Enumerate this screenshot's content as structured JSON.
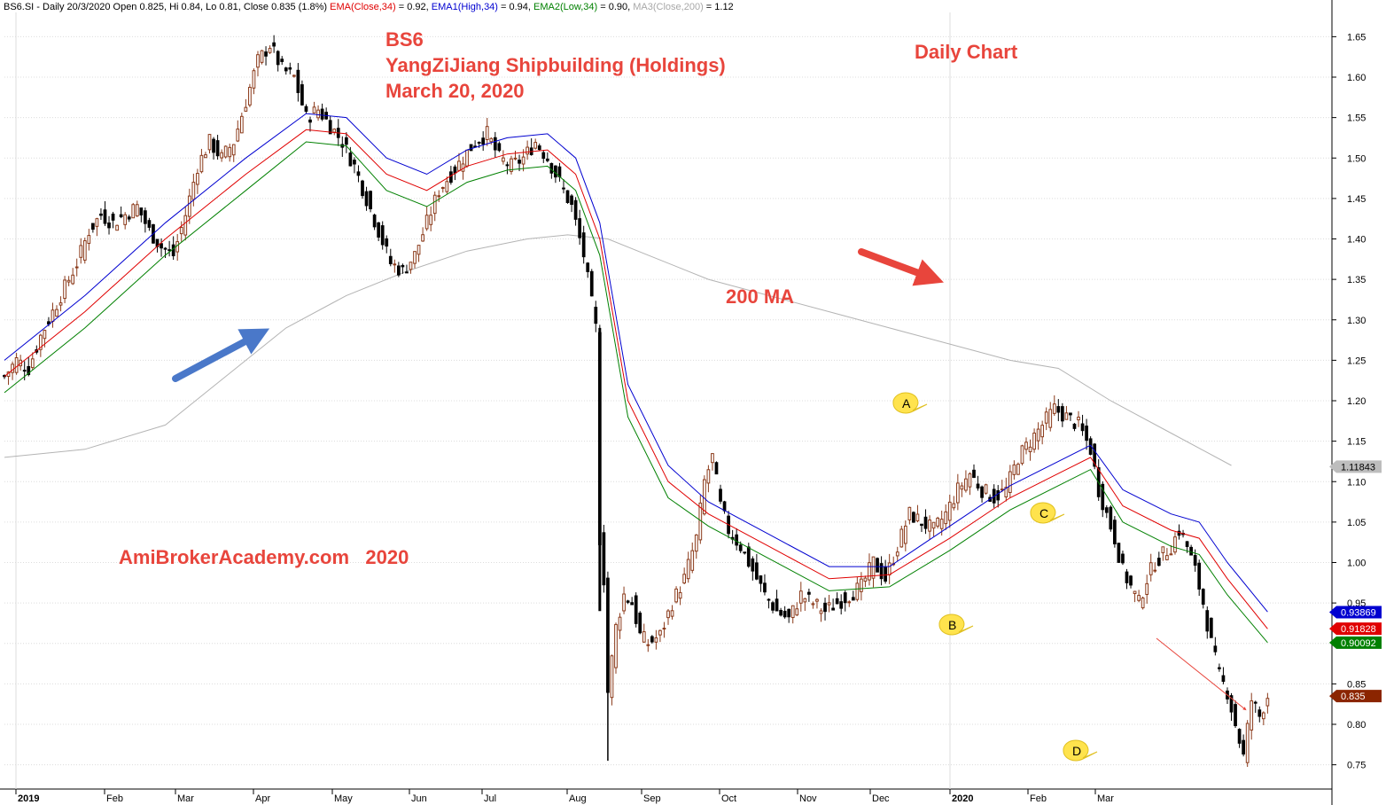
{
  "header": {
    "symbol_info": "BS6.SI - Daily 20/3/2020 Open 0.825, Hi 0.84, Lo 0.81, Close 0.835 (1.8%)",
    "ema_close_label": "EMA(Close,34)",
    "ema_close_value": " = 0.92, ",
    "ema_high_label": "EMA1(High,34)",
    "ema_high_value": " = 0.94, ",
    "ema_low_label": "EMA2(Low,34)",
    "ema_low_value": " = 0.90, ",
    "ma_label": "MA3(Close,200)",
    "ma_value": " = 1.12"
  },
  "annotations": {
    "ticker": "BS6",
    "company": "YangZiJiang Shipbuilding (Holdings)",
    "date": "March 20, 2020",
    "daily_chart": "Daily Chart",
    "ma200": "200 MA",
    "watermark": "AmiBrokerAcademy.com   2020"
  },
  "colors": {
    "ema_close": "#e00000",
    "ema_high": "#0000d0",
    "ema_low": "#008000",
    "ma200": "#b4b4b4",
    "candle_up": "#8b3a1a",
    "candle_down": "#000000",
    "grid": "#dcdcdc",
    "annotation": "#e8453c",
    "blue_arrow": "#4a78c9",
    "red_arrow": "#e8453c",
    "pin": "#ffe34d"
  },
  "chart_data": {
    "type": "candlestick",
    "y_axis": {
      "min": 0.72,
      "max": 1.68,
      "ticks": [
        "1.65",
        "1.60",
        "1.55",
        "1.50",
        "1.45",
        "1.40",
        "1.35",
        "1.30",
        "1.25",
        "1.20",
        "1.15",
        "1.10",
        "1.05",
        "1.00",
        "0.95",
        "0.90",
        "0.85",
        "0.80",
        "0.75"
      ]
    },
    "x_axis": {
      "months": [
        "2019",
        "Feb",
        "Mar",
        "Apr",
        "May",
        "Jun",
        "Jul",
        "Aug",
        "Sep",
        "Oct",
        "Nov",
        "Dec",
        "2020",
        "Feb",
        "Mar"
      ],
      "bold_labels": [
        "2019",
        "2020"
      ]
    },
    "price_labels": [
      {
        "value": 1.11843,
        "text": "1.11843",
        "bg": "#bdbdbd",
        "fg": "#000000"
      },
      {
        "value": 0.93869,
        "text": "0.93869",
        "bg": "#0000d0",
        "fg": "#ffffff"
      },
      {
        "value": 0.91828,
        "text": "0.91828",
        "bg": "#e00000",
        "fg": "#ffffff"
      },
      {
        "value": 0.90092,
        "text": "0.90092",
        "bg": "#008000",
        "fg": "#ffffff"
      },
      {
        "value": 0.835,
        "text": "0.835",
        "bg": "#8b2500",
        "fg": "#ffffff"
      }
    ],
    "wave_labels": [
      {
        "name": "A",
        "date_index": 0.852,
        "value": 1.19
      },
      {
        "name": "B",
        "date_index": 0.878,
        "value": 0.92
      },
      {
        "name": "C",
        "date_index": 0.952,
        "value": 1.05
      },
      {
        "name": "D",
        "date_index": 0.988,
        "value": 0.73
      }
    ],
    "close_path": [
      [
        0,
        1.23
      ],
      [
        3,
        1.25
      ],
      [
        6,
        1.24
      ],
      [
        9,
        1.28
      ],
      [
        12,
        1.31
      ],
      [
        15,
        1.34
      ],
      [
        18,
        1.37
      ],
      [
        21,
        1.41
      ],
      [
        24,
        1.43
      ],
      [
        27,
        1.42
      ],
      [
        30,
        1.43
      ],
      [
        33,
        1.44
      ],
      [
        36,
        1.41
      ],
      [
        39,
        1.39
      ],
      [
        42,
        1.38
      ],
      [
        45,
        1.43
      ],
      [
        48,
        1.49
      ],
      [
        51,
        1.52
      ],
      [
        54,
        1.5
      ],
      [
        57,
        1.52
      ],
      [
        60,
        1.57
      ],
      [
        63,
        1.62
      ],
      [
        66,
        1.64
      ],
      [
        69,
        1.61
      ],
      [
        72,
        1.6
      ],
      [
        75,
        1.55
      ],
      [
        78,
        1.56
      ],
      [
        81,
        1.54
      ],
      [
        84,
        1.52
      ],
      [
        87,
        1.49
      ],
      [
        90,
        1.45
      ],
      [
        93,
        1.41
      ],
      [
        96,
        1.37
      ],
      [
        99,
        1.36
      ],
      [
        102,
        1.38
      ],
      [
        105,
        1.42
      ],
      [
        108,
        1.46
      ],
      [
        111,
        1.48
      ],
      [
        114,
        1.5
      ],
      [
        117,
        1.52
      ],
      [
        120,
        1.53
      ],
      [
        123,
        1.5
      ],
      [
        126,
        1.49
      ],
      [
        129,
        1.5
      ],
      [
        132,
        1.52
      ],
      [
        135,
        1.5
      ],
      [
        138,
        1.47
      ],
      [
        141,
        1.44
      ],
      [
        144,
        1.38
      ],
      [
        146,
        1.32
      ],
      [
        147,
        1.29
      ],
      [
        148,
        1.03
      ],
      [
        149,
        0.98
      ],
      [
        150,
        0.84
      ],
      [
        152,
        0.92
      ],
      [
        154,
        0.96
      ],
      [
        156,
        0.95
      ],
      [
        158,
        0.91
      ],
      [
        160,
        0.9
      ],
      [
        163,
        0.91
      ],
      [
        166,
        0.95
      ],
      [
        169,
        0.98
      ],
      [
        172,
        1.03
      ],
      [
        174,
        1.1
      ],
      [
        176,
        1.13
      ],
      [
        178,
        1.07
      ],
      [
        180,
        1.04
      ],
      [
        183,
        1.02
      ],
      [
        186,
        0.99
      ],
      [
        189,
        0.96
      ],
      [
        192,
        0.94
      ],
      [
        195,
        0.93
      ],
      [
        198,
        0.96
      ],
      [
        201,
        0.95
      ],
      [
        204,
        0.94
      ],
      [
        207,
        0.95
      ],
      [
        210,
        0.96
      ],
      [
        213,
        0.97
      ],
      [
        216,
        1.0
      ],
      [
        219,
        0.98
      ],
      [
        222,
        1.02
      ],
      [
        225,
        1.06
      ],
      [
        228,
        1.05
      ],
      [
        231,
        1.04
      ],
      [
        234,
        1.06
      ],
      [
        237,
        1.09
      ],
      [
        240,
        1.11
      ],
      [
        243,
        1.09
      ],
      [
        246,
        1.08
      ],
      [
        249,
        1.09
      ],
      [
        252,
        1.13
      ],
      [
        255,
        1.15
      ],
      [
        258,
        1.17
      ],
      [
        261,
        1.19
      ],
      [
        264,
        1.18
      ],
      [
        267,
        1.17
      ],
      [
        270,
        1.14
      ],
      [
        272,
        1.09
      ],
      [
        274,
        1.06
      ],
      [
        276,
        1.03
      ],
      [
        278,
        0.99
      ],
      [
        280,
        0.97
      ],
      [
        282,
        0.95
      ],
      [
        284,
        0.98
      ],
      [
        286,
        1.0
      ],
      [
        288,
        1.01
      ],
      [
        290,
        1.02
      ],
      [
        292,
        1.04
      ],
      [
        294,
        1.02
      ],
      [
        296,
        0.99
      ],
      [
        298,
        0.95
      ],
      [
        300,
        0.9
      ],
      [
        302,
        0.86
      ],
      [
        304,
        0.84
      ],
      [
        306,
        0.8
      ],
      [
        308,
        0.76
      ],
      [
        310,
        0.83
      ],
      [
        312,
        0.81
      ],
      [
        314,
        0.835
      ]
    ],
    "ema_close_path": [
      [
        0,
        1.23
      ],
      [
        20,
        1.31
      ],
      [
        40,
        1.4
      ],
      [
        60,
        1.48
      ],
      [
        75,
        1.535
      ],
      [
        85,
        1.53
      ],
      [
        95,
        1.48
      ],
      [
        105,
        1.46
      ],
      [
        115,
        1.49
      ],
      [
        125,
        1.505
      ],
      [
        135,
        1.51
      ],
      [
        142,
        1.48
      ],
      [
        148,
        1.4
      ],
      [
        155,
        1.2
      ],
      [
        165,
        1.1
      ],
      [
        175,
        1.06
      ],
      [
        190,
        1.02
      ],
      [
        205,
        0.98
      ],
      [
        220,
        0.985
      ],
      [
        235,
        1.03
      ],
      [
        250,
        1.08
      ],
      [
        262,
        1.11
      ],
      [
        270,
        1.13
      ],
      [
        278,
        1.07
      ],
      [
        290,
        1.04
      ],
      [
        297,
        1.03
      ],
      [
        304,
        0.98
      ],
      [
        314,
        0.918
      ]
    ],
    "ema_high_path": [
      [
        0,
        1.25
      ],
      [
        20,
        1.33
      ],
      [
        40,
        1.42
      ],
      [
        60,
        1.5
      ],
      [
        75,
        1.555
      ],
      [
        85,
        1.55
      ],
      [
        95,
        1.5
      ],
      [
        105,
        1.48
      ],
      [
        115,
        1.51
      ],
      [
        125,
        1.525
      ],
      [
        135,
        1.53
      ],
      [
        142,
        1.5
      ],
      [
        148,
        1.42
      ],
      [
        155,
        1.22
      ],
      [
        165,
        1.12
      ],
      [
        175,
        1.075
      ],
      [
        190,
        1.035
      ],
      [
        205,
        0.995
      ],
      [
        220,
        0.995
      ],
      [
        235,
        1.045
      ],
      [
        250,
        1.095
      ],
      [
        262,
        1.125
      ],
      [
        270,
        1.145
      ],
      [
        278,
        1.09
      ],
      [
        290,
        1.06
      ],
      [
        297,
        1.05
      ],
      [
        304,
        1.0
      ],
      [
        314,
        0.939
      ]
    ],
    "ema_low_path": [
      [
        0,
        1.21
      ],
      [
        20,
        1.29
      ],
      [
        40,
        1.38
      ],
      [
        60,
        1.46
      ],
      [
        75,
        1.52
      ],
      [
        85,
        1.515
      ],
      [
        95,
        1.46
      ],
      [
        105,
        1.44
      ],
      [
        115,
        1.47
      ],
      [
        125,
        1.485
      ],
      [
        135,
        1.49
      ],
      [
        142,
        1.46
      ],
      [
        148,
        1.38
      ],
      [
        155,
        1.18
      ],
      [
        165,
        1.08
      ],
      [
        175,
        1.045
      ],
      [
        190,
        1.005
      ],
      [
        205,
        0.965
      ],
      [
        220,
        0.97
      ],
      [
        235,
        1.015
      ],
      [
        250,
        1.065
      ],
      [
        262,
        1.095
      ],
      [
        270,
        1.115
      ],
      [
        278,
        1.05
      ],
      [
        290,
        1.02
      ],
      [
        297,
        1.01
      ],
      [
        304,
        0.96
      ],
      [
        314,
        0.901
      ]
    ],
    "ma200_path": [
      [
        0,
        1.13
      ],
      [
        20,
        1.14
      ],
      [
        40,
        1.17
      ],
      [
        55,
        1.23
      ],
      [
        70,
        1.29
      ],
      [
        85,
        1.33
      ],
      [
        100,
        1.36
      ],
      [
        115,
        1.385
      ],
      [
        130,
        1.4
      ],
      [
        140,
        1.405
      ],
      [
        150,
        1.4
      ],
      [
        160,
        1.38
      ],
      [
        175,
        1.35
      ],
      [
        190,
        1.33
      ],
      [
        205,
        1.31
      ],
      [
        220,
        1.29
      ],
      [
        235,
        1.27
      ],
      [
        250,
        1.25
      ],
      [
        262,
        1.24
      ],
      [
        275,
        1.2
      ],
      [
        290,
        1.16
      ],
      [
        305,
        1.12
      ]
    ],
    "x_range": [
      0,
      330
    ]
  }
}
